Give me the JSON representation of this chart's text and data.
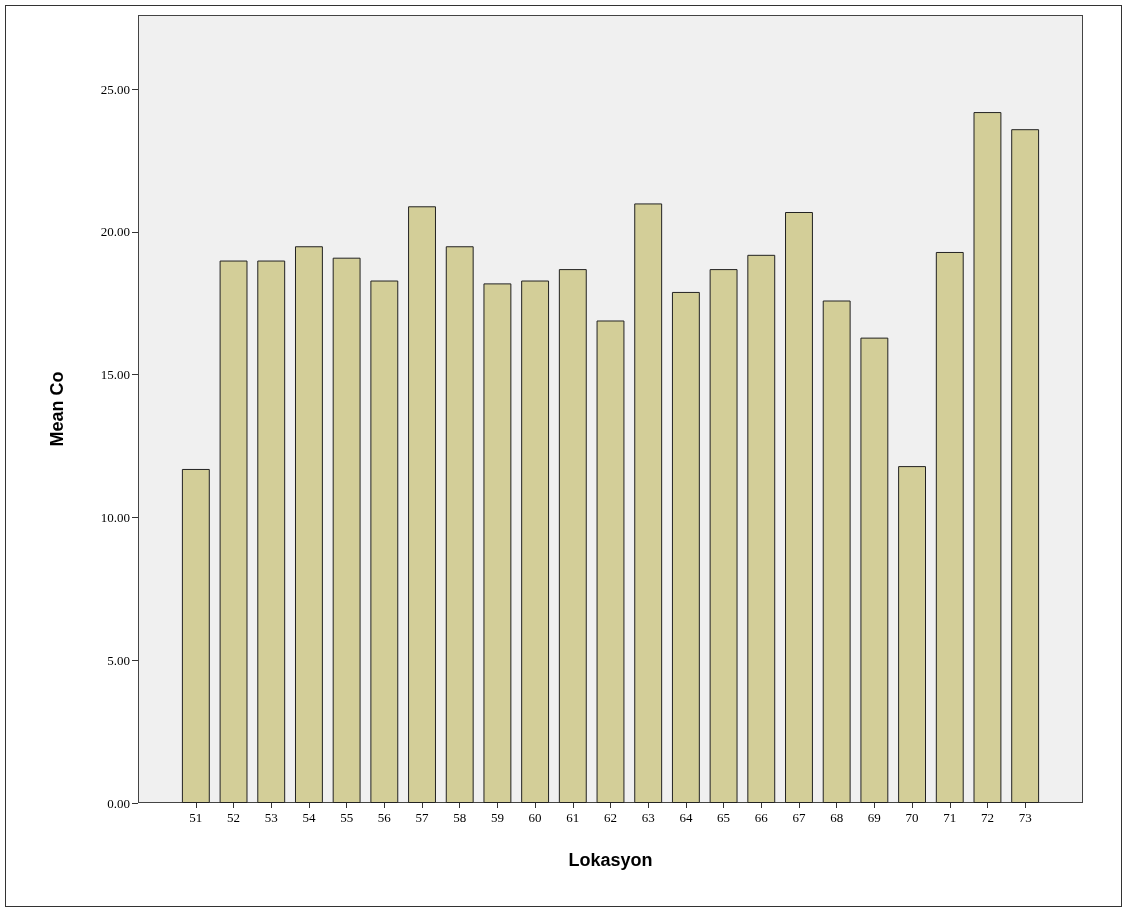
{
  "chart_data": {
    "type": "bar",
    "xlabel": "Lokasyon",
    "ylabel": "Mean Co",
    "categories": [
      "51",
      "52",
      "53",
      "54",
      "55",
      "56",
      "57",
      "58",
      "59",
      "60",
      "61",
      "62",
      "63",
      "64",
      "65",
      "66",
      "67",
      "68",
      "69",
      "70",
      "71",
      "72",
      "73"
    ],
    "values": [
      11.7,
      19.0,
      19.0,
      19.5,
      19.1,
      18.3,
      20.9,
      19.5,
      18.2,
      18.3,
      18.7,
      16.9,
      21.0,
      17.9,
      18.7,
      19.2,
      20.7,
      17.6,
      16.3,
      11.8,
      19.3,
      24.2,
      23.6
    ],
    "color": "#d3ce98",
    "ylim": [
      0,
      27.6
    ],
    "yticks": [
      {
        "value": 0,
        "label": "0.00"
      },
      {
        "value": 5,
        "label": "5.00"
      },
      {
        "value": 10,
        "label": "10.00"
      },
      {
        "value": 15,
        "label": "15.00"
      },
      {
        "value": 20,
        "label": "20.00"
      },
      {
        "value": 25,
        "label": "25.00"
      }
    ],
    "grid": false
  }
}
